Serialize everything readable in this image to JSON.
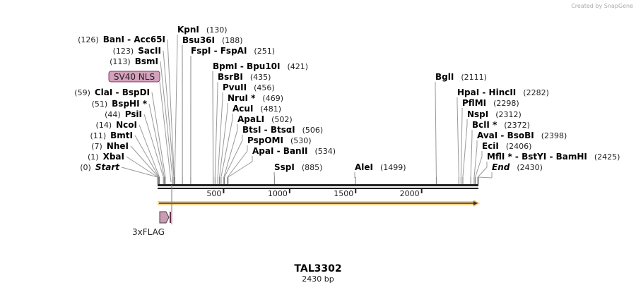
{
  "credit": "Created by SnapGene",
  "title": "TAL3302",
  "length_label": "2430 bp",
  "length_bp": 2430,
  "ticks": [
    {
      "bp": 500,
      "label": "500"
    },
    {
      "bp": 1000,
      "label": "1000"
    },
    {
      "bp": 1500,
      "label": "1500"
    },
    {
      "bp": 2000,
      "label": "2000"
    }
  ],
  "sites": [
    {
      "name": "BanI  - Acc65I",
      "pos": "(126)",
      "bp": 126
    },
    {
      "name": "SacII",
      "pos": "(123)",
      "bp": 123
    },
    {
      "name": "BsmI",
      "pos": "(113)",
      "bp": 113
    },
    {
      "name": "ClaI  - BspDI",
      "pos": "(59)",
      "bp": 59
    },
    {
      "name": "BspHI *",
      "pos": "(51)",
      "bp": 51
    },
    {
      "name": "PsiI",
      "pos": "(44)",
      "bp": 44
    },
    {
      "name": "NcoI",
      "pos": "(14)",
      "bp": 14
    },
    {
      "name": "BmtI",
      "pos": "(11)",
      "bp": 11
    },
    {
      "name": "NheI",
      "pos": "(7)",
      "bp": 7
    },
    {
      "name": "XbaI",
      "pos": "(1)",
      "bp": 1
    },
    {
      "name": "Start",
      "pos": "(0)",
      "bp": 0,
      "italic": true
    },
    {
      "name": "KpnI",
      "pos": "(130)",
      "bp": 130
    },
    {
      "name": "Bsu36I",
      "pos": "(188)",
      "bp": 188
    },
    {
      "name": "FspI  - FspAI",
      "pos": "(251)",
      "bp": 251
    },
    {
      "name": "BpmI  - Bpu10I",
      "pos": "(421)",
      "bp": 421
    },
    {
      "name": "BsrBI",
      "pos": "(435)",
      "bp": 435
    },
    {
      "name": "PvuII",
      "pos": "(456)",
      "bp": 456
    },
    {
      "name": "NruI *",
      "pos": "(469)",
      "bp": 469
    },
    {
      "name": "AcuI",
      "pos": "(481)",
      "bp": 481
    },
    {
      "name": "ApaLI",
      "pos": "(502)",
      "bp": 502
    },
    {
      "name": "BtsI  - BtsαI",
      "pos": "(506)",
      "bp": 506
    },
    {
      "name": "PspOMI",
      "pos": "(530)",
      "bp": 530
    },
    {
      "name": "ApaI  - BanII",
      "pos": "(534)",
      "bp": 534
    },
    {
      "name": "SspI",
      "pos": "(885)",
      "bp": 885
    },
    {
      "name": "AleI",
      "pos": "(1499)",
      "bp": 1499
    },
    {
      "name": "BglI",
      "pos": "(2111)",
      "bp": 2111
    },
    {
      "name": "HpaI  - HincII",
      "pos": "(2282)",
      "bp": 2282
    },
    {
      "name": "PflMI",
      "pos": "(2298)",
      "bp": 2298
    },
    {
      "name": "NspI",
      "pos": "(2312)",
      "bp": 2312
    },
    {
      "name": "BclI *",
      "pos": "(2372)",
      "bp": 2372
    },
    {
      "name": "AvaI  - BsoBI",
      "pos": "(2398)",
      "bp": 2398
    },
    {
      "name": "EciI",
      "pos": "(2406)",
      "bp": 2406
    },
    {
      "name": "MflI *  - BstYI  - BamHI",
      "pos": "(2425)",
      "bp": 2425
    },
    {
      "name": "End",
      "pos": "(2430)",
      "bp": 2430,
      "italic": true
    }
  ],
  "features": [
    {
      "name": "SV40 NLS",
      "color": "#d4a0bc"
    },
    {
      "name": "3xFLAG",
      "color": "#c99bb5"
    }
  ],
  "orf_color": "#f5c469"
}
